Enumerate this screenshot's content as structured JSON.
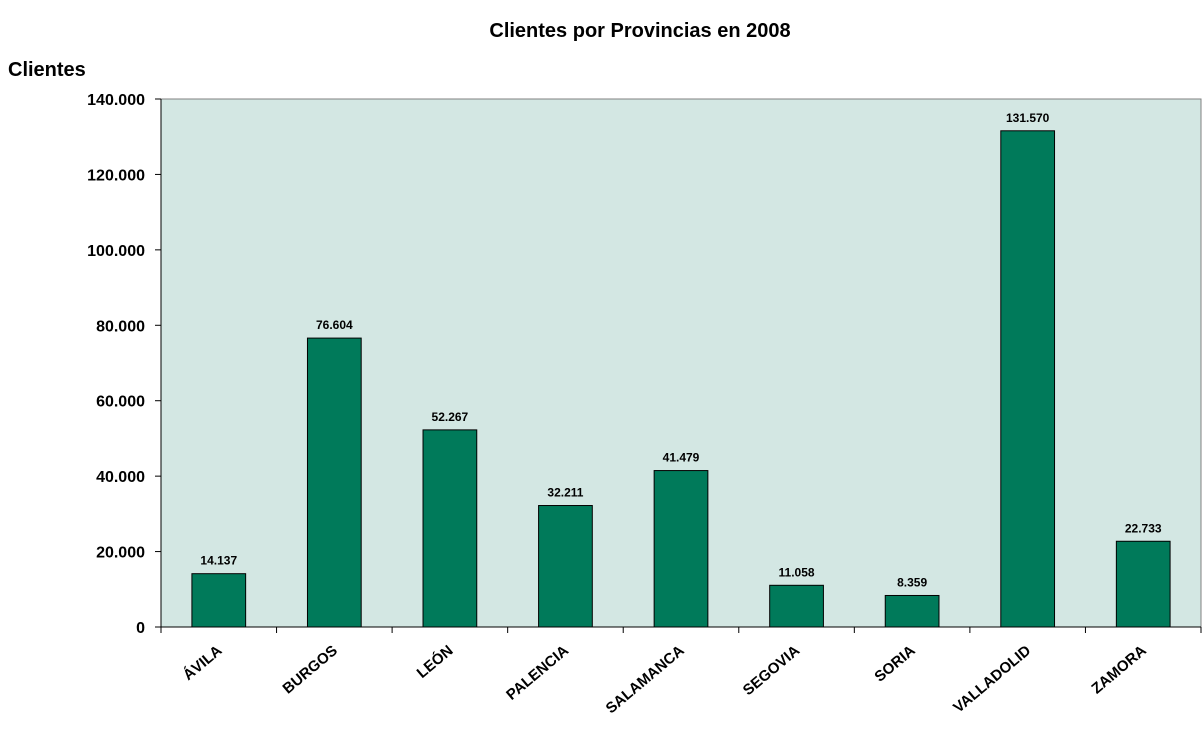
{
  "chart_data": {
    "type": "bar",
    "title": "Clientes por Provincias en 2008",
    "ylabel": "Clientes",
    "xlabel": "",
    "categories": [
      "ÁVILA",
      "BURGOS",
      "LEÓN",
      "PALENCIA",
      "SALAMANCA",
      "SEGOVIA",
      "SORIA",
      "VALLADOLID",
      "ZAMORA"
    ],
    "values": [
      14137,
      76604,
      52267,
      32211,
      41479,
      11058,
      8359,
      131570,
      22733
    ],
    "data_labels": [
      "14.137",
      "76.604",
      "52.267",
      "32.211",
      "41.479",
      "11.058",
      "8.359",
      "131.570",
      "22.733"
    ],
    "ylim": [
      0,
      140000
    ],
    "yticks": [
      0,
      20000,
      40000,
      60000,
      80000,
      100000,
      120000,
      140000
    ],
    "ytick_labels": [
      "0",
      "20.000",
      "40.000",
      "60.000",
      "80.000",
      "100.000",
      "120.000",
      "140.000"
    ],
    "grid": false,
    "legend": "none",
    "colors": {
      "bar": "#007A5A",
      "plot_background": "#D3E7E3",
      "bar_stroke": "#000000"
    }
  }
}
